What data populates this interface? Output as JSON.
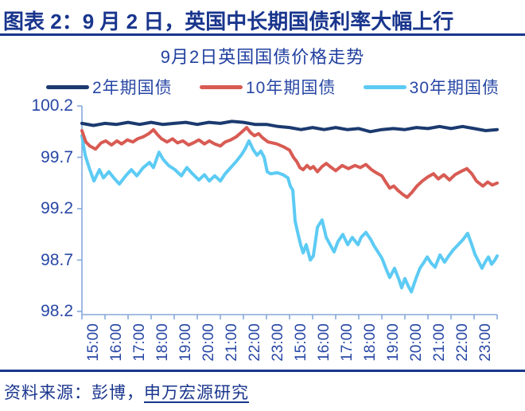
{
  "header": {
    "title_prefix": "图表",
    "title_rest": " 2：9 月 2 日，英国中长期国债利率大幅上行"
  },
  "footer": {
    "source_prefix": "资料来源：彭博，",
    "source_link": "申万宏源研究"
  },
  "colors": {
    "heading_blue": "#19358D",
    "chart_text_blue": "#2847A5",
    "axis_line_blue": "#86A8DA",
    "series_2y": "#1B3A6F",
    "series_10y": "#D85B53",
    "series_30y": "#5CCBF4"
  },
  "chart_data": {
    "type": "line",
    "title": "9月2日英国国债价格走势",
    "xlabel": "",
    "ylabel": "",
    "grid": false,
    "legend_position": "top",
    "ylim": [
      98.2,
      100.2
    ],
    "y_ticks": [
      100.2,
      99.7,
      99.2,
      98.7,
      98.2
    ],
    "y_tick_labels": [
      "100.2",
      "99.7",
      "99.2",
      "98.7",
      "98.2"
    ],
    "x_hours_total": 18,
    "x_labels": [
      "15:00",
      "16:00",
      "17:00",
      "18:00",
      "19:00",
      "20:00",
      "21:00",
      "22:00",
      "23:00",
      "15:00",
      "16:00",
      "17:00",
      "18:00",
      "19:00",
      "20:00",
      "21:00",
      "22:00",
      "23:00"
    ],
    "series": [
      {
        "id": "2y",
        "name": "2年期国债",
        "color": "#1B3A6F",
        "points": [
          [
            0,
            100.03
          ],
          [
            0.5,
            100.01
          ],
          [
            1,
            100.03
          ],
          [
            1.5,
            100.02
          ],
          [
            2,
            100.04
          ],
          [
            2.5,
            100.02
          ],
          [
            3,
            100.04
          ],
          [
            3.5,
            100.02
          ],
          [
            4,
            100.03
          ],
          [
            4.5,
            100.04
          ],
          [
            5,
            100.02
          ],
          [
            5.5,
            100.04
          ],
          [
            6,
            100.03
          ],
          [
            6.5,
            100.05
          ],
          [
            7,
            100.04
          ],
          [
            7.5,
            100.02
          ],
          [
            8,
            100.02
          ],
          [
            8.5,
            100.0
          ],
          [
            9,
            99.99
          ],
          [
            9.5,
            99.97
          ],
          [
            10,
            99.99
          ],
          [
            10.5,
            99.97
          ],
          [
            11,
            99.99
          ],
          [
            11.5,
            99.97
          ],
          [
            12,
            99.98
          ],
          [
            12.5,
            99.95
          ],
          [
            13,
            99.97
          ],
          [
            13.5,
            99.98
          ],
          [
            14,
            99.97
          ],
          [
            14.5,
            99.99
          ],
          [
            15,
            99.98
          ],
          [
            15.5,
            100.0
          ],
          [
            16,
            99.98
          ],
          [
            16.5,
            100.0
          ],
          [
            17,
            99.98
          ],
          [
            17.5,
            99.96
          ],
          [
            18,
            99.97
          ]
        ]
      },
      {
        "id": "10y",
        "name": "10年期国债",
        "color": "#D85B53",
        "points": [
          [
            0,
            99.96
          ],
          [
            0.17,
            99.85
          ],
          [
            0.34,
            99.81
          ],
          [
            0.59,
            99.78
          ],
          [
            0.83,
            99.84
          ],
          [
            1.03,
            99.86
          ],
          [
            1.28,
            99.82
          ],
          [
            1.52,
            99.86
          ],
          [
            1.72,
            99.83
          ],
          [
            1.97,
            99.87
          ],
          [
            2.21,
            99.85
          ],
          [
            2.41,
            99.88
          ],
          [
            2.66,
            99.9
          ],
          [
            2.9,
            99.93
          ],
          [
            3.1,
            99.97
          ],
          [
            3.28,
            99.92
          ],
          [
            3.45,
            99.88
          ],
          [
            3.69,
            99.85
          ],
          [
            3.93,
            99.88
          ],
          [
            4.14,
            99.84
          ],
          [
            4.38,
            99.86
          ],
          [
            4.62,
            99.82
          ],
          [
            4.83,
            99.84
          ],
          [
            5.07,
            99.87
          ],
          [
            5.31,
            99.83
          ],
          [
            5.52,
            99.86
          ],
          [
            5.76,
            99.83
          ],
          [
            6,
            99.81
          ],
          [
            6.21,
            99.85
          ],
          [
            6.45,
            99.87
          ],
          [
            6.69,
            99.9
          ],
          [
            6.9,
            99.94
          ],
          [
            7.14,
            99.99
          ],
          [
            7.31,
            99.94
          ],
          [
            7.48,
            99.91
          ],
          [
            7.66,
            99.93
          ],
          [
            7.83,
            99.89
          ],
          [
            8.07,
            99.85
          ],
          [
            8.45,
            99.83
          ],
          [
            8.76,
            99.8
          ],
          [
            9,
            99.77
          ],
          [
            9.17,
            99.7
          ],
          [
            9.31,
            99.66
          ],
          [
            9.45,
            99.6
          ],
          [
            9.59,
            99.58
          ],
          [
            9.76,
            99.62
          ],
          [
            9.9,
            99.59
          ],
          [
            10.03,
            99.61
          ],
          [
            10.21,
            99.56
          ],
          [
            10.41,
            99.61
          ],
          [
            10.59,
            99.64
          ],
          [
            10.76,
            99.61
          ],
          [
            11,
            99.57
          ],
          [
            11.28,
            99.62
          ],
          [
            11.55,
            99.59
          ],
          [
            11.83,
            99.62
          ],
          [
            12.07,
            99.6
          ],
          [
            12.31,
            99.63
          ],
          [
            12.55,
            99.58
          ],
          [
            12.76,
            99.55
          ],
          [
            13,
            99.52
          ],
          [
            13.17,
            99.46
          ],
          [
            13.34,
            99.4
          ],
          [
            13.52,
            99.42
          ],
          [
            13.69,
            99.38
          ],
          [
            13.9,
            99.34
          ],
          [
            14.1,
            99.31
          ],
          [
            14.31,
            99.36
          ],
          [
            14.52,
            99.42
          ],
          [
            14.76,
            99.47
          ],
          [
            15,
            99.51
          ],
          [
            15.24,
            99.54
          ],
          [
            15.45,
            99.49
          ],
          [
            15.69,
            99.53
          ],
          [
            15.93,
            99.48
          ],
          [
            16.17,
            99.53
          ],
          [
            16.41,
            99.56
          ],
          [
            16.69,
            99.59
          ],
          [
            16.9,
            99.54
          ],
          [
            17.1,
            99.47
          ],
          [
            17.38,
            99.42
          ],
          [
            17.59,
            99.46
          ],
          [
            17.79,
            99.43
          ],
          [
            18,
            99.45
          ]
        ]
      },
      {
        "id": "30y",
        "name": "30年期国债",
        "color": "#5CCBF4",
        "points": [
          [
            0,
            99.91
          ],
          [
            0.14,
            99.72
          ],
          [
            0.31,
            99.6
          ],
          [
            0.52,
            99.47
          ],
          [
            0.76,
            99.58
          ],
          [
            0.93,
            99.5
          ],
          [
            1.17,
            99.56
          ],
          [
            1.38,
            99.5
          ],
          [
            1.62,
            99.44
          ],
          [
            1.9,
            99.52
          ],
          [
            2.14,
            99.58
          ],
          [
            2.38,
            99.52
          ],
          [
            2.66,
            99.6
          ],
          [
            2.93,
            99.65
          ],
          [
            3.1,
            99.6
          ],
          [
            3.34,
            99.75
          ],
          [
            3.52,
            99.68
          ],
          [
            3.76,
            99.62
          ],
          [
            4.03,
            99.58
          ],
          [
            4.31,
            99.52
          ],
          [
            4.55,
            99.6
          ],
          [
            4.79,
            99.54
          ],
          [
            5.07,
            99.48
          ],
          [
            5.31,
            99.53
          ],
          [
            5.52,
            99.47
          ],
          [
            5.76,
            99.52
          ],
          [
            6,
            99.47
          ],
          [
            6.21,
            99.54
          ],
          [
            6.45,
            99.6
          ],
          [
            6.69,
            99.66
          ],
          [
            6.9,
            99.72
          ],
          [
            7.07,
            99.78
          ],
          [
            7.24,
            99.86
          ],
          [
            7.41,
            99.78
          ],
          [
            7.59,
            99.72
          ],
          [
            7.76,
            99.76
          ],
          [
            7.9,
            99.7
          ],
          [
            8.03,
            99.56
          ],
          [
            8.17,
            99.54
          ],
          [
            8.48,
            99.55
          ],
          [
            8.72,
            99.53
          ],
          [
            8.93,
            99.5
          ],
          [
            9.03,
            99.42
          ],
          [
            9.14,
            99.38
          ],
          [
            9.24,
            99.08
          ],
          [
            9.34,
            98.98
          ],
          [
            9.48,
            98.85
          ],
          [
            9.59,
            98.77
          ],
          [
            9.72,
            98.85
          ],
          [
            9.9,
            98.7
          ],
          [
            10.03,
            98.74
          ],
          [
            10.21,
            99.02
          ],
          [
            10.41,
            99.09
          ],
          [
            10.59,
            98.92
          ],
          [
            10.76,
            98.85
          ],
          [
            10.93,
            98.78
          ],
          [
            11.1,
            98.88
          ],
          [
            11.31,
            98.95
          ],
          [
            11.52,
            98.85
          ],
          [
            11.72,
            98.92
          ],
          [
            11.97,
            98.85
          ],
          [
            12.1,
            98.92
          ],
          [
            12.31,
            98.97
          ],
          [
            12.52,
            98.9
          ],
          [
            12.66,
            98.84
          ],
          [
            13,
            98.72
          ],
          [
            13.21,
            98.6
          ],
          [
            13.34,
            98.53
          ],
          [
            13.55,
            98.62
          ],
          [
            13.76,
            98.5
          ],
          [
            13.86,
            98.43
          ],
          [
            14,
            98.52
          ],
          [
            14.14,
            98.45
          ],
          [
            14.28,
            98.39
          ],
          [
            14.48,
            98.52
          ],
          [
            14.65,
            98.62
          ],
          [
            14.83,
            98.68
          ],
          [
            14.97,
            98.73
          ],
          [
            15.14,
            98.67
          ],
          [
            15.31,
            98.63
          ],
          [
            15.52,
            98.75
          ],
          [
            15.72,
            98.68
          ],
          [
            15.9,
            98.74
          ],
          [
            16.1,
            98.8
          ],
          [
            16.31,
            98.85
          ],
          [
            16.52,
            98.9
          ],
          [
            16.72,
            98.96
          ],
          [
            16.9,
            98.85
          ],
          [
            17.03,
            98.76
          ],
          [
            17.21,
            98.68
          ],
          [
            17.34,
            98.62
          ],
          [
            17.48,
            98.68
          ],
          [
            17.62,
            98.73
          ],
          [
            17.76,
            98.66
          ],
          [
            17.9,
            98.7
          ],
          [
            18,
            98.74
          ]
        ]
      }
    ]
  }
}
